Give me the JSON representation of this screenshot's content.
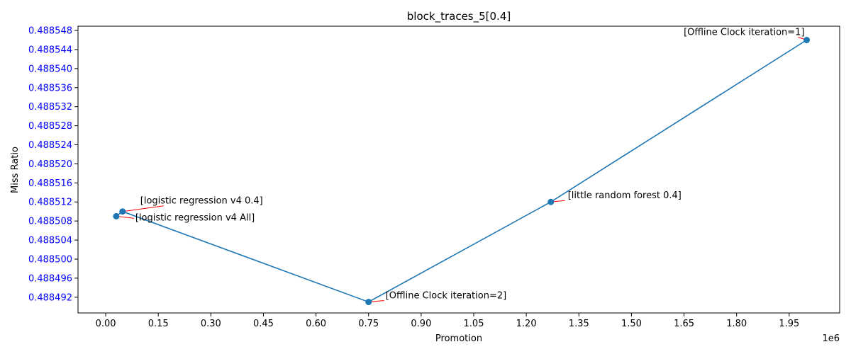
{
  "chart_data": {
    "type": "line",
    "title": "block_traces_5[0.4]",
    "xlabel": "Promotion",
    "ylabel": "Miss Ratio",
    "x_offset_text": "1e6",
    "xlim": [
      -0.079,
      2.094
    ],
    "ylim": [
      0.4884887,
      0.4885489
    ],
    "x_ticks": [
      "0.00",
      "0.15",
      "0.30",
      "0.45",
      "0.60",
      "0.75",
      "0.90",
      "1.05",
      "1.20",
      "1.35",
      "1.50",
      "1.65",
      "1.80",
      "1.95"
    ],
    "x_tick_values": [
      0,
      0.15,
      0.3,
      0.45,
      0.6,
      0.75,
      0.9,
      1.05,
      1.2,
      1.35,
      1.5,
      1.65,
      1.8,
      1.95
    ],
    "y_ticks": [
      "0.488492",
      "0.488496",
      "0.488500",
      "0.488504",
      "0.488508",
      "0.488512",
      "0.488516",
      "0.488520",
      "0.488524",
      "0.488528",
      "0.488532",
      "0.488536",
      "0.488540",
      "0.488544",
      "0.488548"
    ],
    "y_tick_values": [
      0.488492,
      0.488496,
      0.4885,
      0.488504,
      0.488508,
      0.488512,
      0.488516,
      0.48852,
      0.488524,
      0.488528,
      0.488532,
      0.488536,
      0.48854,
      0.488544,
      0.488548
    ],
    "grid": false,
    "colors": {
      "line": "#1f77b4",
      "ytick": "#0000ff",
      "annot_arrow": "#ff0000"
    },
    "series": [
      {
        "points": [
          {
            "x": 0.03,
            "y": 0.488509,
            "label": "[logistic regression v4 All]"
          },
          {
            "x": 0.048,
            "y": 0.48851,
            "label": "[logistic regression v4 0.4]"
          },
          {
            "x": 0.75,
            "y": 0.488491,
            "label": "[Offline Clock iteration=2]"
          },
          {
            "x": 1.27,
            "y": 0.488512,
            "label": "[little random forest 0.4]"
          },
          {
            "x": 2.0,
            "y": 0.488546,
            "label": "[Offline Clock iteration=1]"
          }
        ]
      }
    ]
  }
}
